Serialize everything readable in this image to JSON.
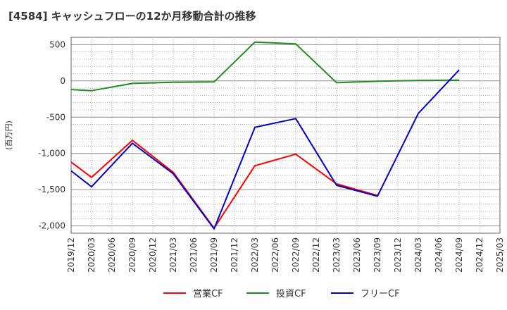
{
  "chart_data": {
    "type": "line",
    "title": "[4584]  キャッシュフローの12か月移動合計の推移",
    "ylabel": "(百万円)",
    "xlabel": "",
    "ylim": [
      -2100,
      600
    ],
    "yticks": [
      500,
      0,
      -500,
      -1000,
      -1500,
      -2000
    ],
    "ytick_labels": [
      "500",
      "0",
      "-500",
      "-1,000",
      "-1,500",
      "-2,000"
    ],
    "categories": [
      "2019/12",
      "2020/03",
      "2020/06",
      "2020/09",
      "2020/12",
      "2021/03",
      "2021/06",
      "2021/09",
      "2021/12",
      "2022/03",
      "2022/06",
      "2022/09",
      "2022/12",
      "2023/03",
      "2023/06",
      "2023/09",
      "2023/12",
      "2024/03",
      "2024/06",
      "2024/09",
      "2024/12",
      "2025/03"
    ],
    "grid": true,
    "legend_position": "bottom",
    "series": [
      {
        "name": "営業CF",
        "color": "#ff0000",
        "values": [
          -1120,
          -1330,
          null,
          -820,
          null,
          -1260,
          null,
          -2030,
          null,
          -1170,
          null,
          -1010,
          null,
          -1420,
          null,
          -1580,
          null,
          null,
          null,
          null,
          null,
          null
        ]
      },
      {
        "name": "投資CF",
        "color": "#228b22",
        "values": [
          -120,
          -135,
          null,
          -35,
          null,
          -20,
          null,
          -15,
          null,
          535,
          null,
          510,
          null,
          -25,
          null,
          -5,
          null,
          5,
          null,
          10,
          null,
          null
        ]
      },
      {
        "name": "フリーCF",
        "color": "#0000cc",
        "values": [
          -1240,
          -1460,
          null,
          -860,
          null,
          -1280,
          null,
          -2040,
          null,
          -640,
          null,
          -520,
          null,
          -1440,
          null,
          -1590,
          null,
          -450,
          null,
          150,
          null,
          null
        ]
      }
    ]
  }
}
